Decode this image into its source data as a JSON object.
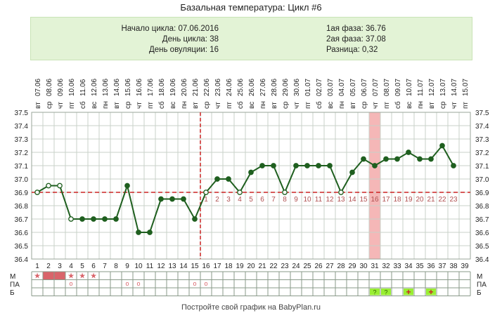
{
  "header": {
    "title": "Базальная температура: Цикл #6",
    "info_left": [
      {
        "label": "Начало цикла:",
        "value": "07.06.2016"
      },
      {
        "label": "День цикла:",
        "value": "38"
      },
      {
        "label": "День овуляции:",
        "value": "16"
      }
    ],
    "info_right": [
      {
        "label": "1ая фаза:",
        "value": "36.76"
      },
      {
        "label": "2ая фаза:",
        "value": "37.08"
      },
      {
        "label": "Разница:",
        "value": "0,32"
      }
    ]
  },
  "footer": {
    "text": "Постройте свой график на BabyPlan.ru"
  },
  "colors": {
    "line": "#1f5f1f",
    "grid": "#c8d2c8",
    "coverline": "#cc2222",
    "ovulation_marker": "#cc2222",
    "highlight_day": "#f5b7b7",
    "bottom_red": "#d9646a",
    "bottom_green": "#99ee33",
    "phase_number": "#b05050"
  },
  "chart_data": {
    "type": "line",
    "title": "Базальная температура: Цикл #6",
    "ylim": [
      36.4,
      37.5
    ],
    "yticks": [
      "37.5",
      "37.4",
      "37.3",
      "37.2",
      "37.1",
      "37.0",
      "36.9",
      "36.8",
      "36.7",
      "36.6",
      "36.5",
      "36.4"
    ],
    "dates": [
      "07.06",
      "08.06",
      "09.06",
      "10.06",
      "11.06",
      "12.06",
      "13.06",
      "14.06",
      "15.06",
      "16.06",
      "17.06",
      "18.06",
      "19.06",
      "20.06",
      "21.06",
      "22.06",
      "23.06",
      "24.06",
      "25.06",
      "26.06",
      "27.06",
      "28.06",
      "29.06",
      "30.06",
      "01.07",
      "02.07",
      "03.07",
      "04.07",
      "05.07",
      "06.07",
      "07.07",
      "08.07",
      "09.07",
      "10.07",
      "11.07",
      "12.07",
      "13.07",
      "14.07",
      "15.07"
    ],
    "weekdays": [
      "вт",
      "ср",
      "чт",
      "пт",
      "сб",
      "вс",
      "пн",
      "вт",
      "ср",
      "чт",
      "пт",
      "сб",
      "вс",
      "пн",
      "вт",
      "ср",
      "чт",
      "пт",
      "сб",
      "вс",
      "пн",
      "вт",
      "ср",
      "чт",
      "пт",
      "сб",
      "вс",
      "пн",
      "вт",
      "ср",
      "чт",
      "пт",
      "сб",
      "вс",
      "пн",
      "вт",
      "ср",
      "чт",
      "пт"
    ],
    "days": [
      1,
      2,
      3,
      4,
      5,
      6,
      7,
      8,
      9,
      10,
      11,
      12,
      13,
      14,
      15,
      16,
      17,
      18,
      19,
      20,
      21,
      22,
      23,
      24,
      25,
      26,
      27,
      28,
      29,
      30,
      31,
      32,
      33,
      34,
      35,
      36,
      37,
      38,
      39
    ],
    "series": [
      {
        "values": [
          36.9,
          36.95,
          36.95,
          36.7,
          36.7,
          36.7,
          36.7,
          36.7,
          36.95,
          36.6,
          36.6,
          36.85,
          36.85,
          36.85,
          36.7,
          36.9,
          37.0,
          37.0,
          36.9,
          37.05,
          37.1,
          37.1,
          36.9,
          37.1,
          37.1,
          37.1,
          37.1,
          36.9,
          37.05,
          37.15,
          37.1,
          37.15,
          37.15,
          37.2,
          37.15,
          37.15,
          37.25,
          37.1,
          null
        ],
        "hollow_days": [
          1,
          2,
          3,
          4,
          16,
          19,
          23,
          28
        ]
      }
    ],
    "coverline": 36.9,
    "ovulation_day": 16,
    "highlight_day": 31,
    "phase_numbers": [
      "1",
      "2",
      "3",
      "4",
      "5",
      "6",
      "7",
      "8",
      "9",
      "10",
      "11",
      "12",
      "13",
      "14",
      "15",
      "16",
      "17",
      "18",
      "19",
      "20",
      "21",
      "22",
      "23"
    ],
    "bottom_rows": {
      "labels": [
        "М",
        "ПА",
        "Б"
      ],
      "M": {
        "star_days": [
          1,
          4,
          5,
          6
        ],
        "red_block_days": [
          2,
          3
        ]
      },
      "PA": {
        "circle_days": [
          4,
          9,
          10,
          15,
          16
        ]
      },
      "B": {
        "question_days": [
          31,
          32
        ],
        "plus_days": [
          34,
          36
        ]
      }
    },
    "symbols": {
      "star": "★",
      "circle": "o",
      "question": "?",
      "plus": "+"
    }
  }
}
